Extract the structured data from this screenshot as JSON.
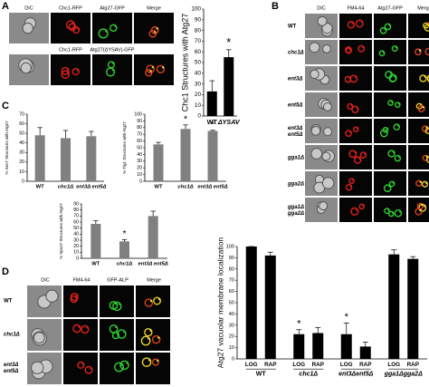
{
  "figure": {
    "panel_labels": [
      "A",
      "B",
      "C",
      "D"
    ],
    "panel_a": {
      "columns": [
        "DIC",
        "Chc1-RFP",
        "Atg27-GFP",
        "Merge"
      ],
      "row2_columns": [
        "Chc1-RFP",
        "Atg27(ΔYSAV)-GFP"
      ]
    },
    "panel_b": {
      "columns": [
        "DIC",
        "FM4-64",
        "Atg27-GFP",
        "Merge"
      ],
      "rows": [
        [
          "WT"
        ],
        [
          "chc1Δ"
        ],
        [
          "ent3Δ"
        ],
        [
          "ent5Δ"
        ],
        [
          "ent3Δ",
          "ent5Δ"
        ],
        [
          "gga1Δ"
        ],
        [
          "gga2Δ"
        ],
        [
          "gga1Δ",
          "gga2Δ"
        ]
      ]
    },
    "panel_d": {
      "columns": [
        "DIC",
        "FM4-64",
        "GFP-ALP",
        "Merge"
      ],
      "rows": [
        [
          "WT"
        ],
        [
          "chc1Δ"
        ],
        [
          "ent3Δ",
          "ent5Δ"
        ]
      ]
    }
  },
  "chart_data": [
    {
      "type": "bar",
      "y_label": "Chc1 Structures with Atg27",
      "categories": [
        "WT",
        "ΔYSAV"
      ],
      "values": [
        23,
        55
      ],
      "errors": [
        10,
        7
      ],
      "significance": [
        null,
        "*"
      ],
      "color": "#000000",
      "ylim": [
        0,
        100
      ],
      "yticks": [
        0,
        10,
        20,
        30,
        40,
        50,
        60,
        70,
        80,
        90,
        100
      ]
    },
    {
      "type": "bar",
      "y_label": "% Sec7 Structures with Atg27",
      "categories": [
        "WT",
        "chc1Δ",
        "ent3Δ ent5Δ"
      ],
      "values": [
        48,
        45,
        47
      ],
      "errors": [
        8,
        8,
        5
      ],
      "significance": [
        null,
        null,
        null
      ],
      "color": "#808080",
      "ylim": [
        0,
        70
      ],
      "yticks": [
        0,
        10,
        20,
        30,
        40,
        50,
        60,
        70
      ]
    },
    {
      "type": "bar",
      "y_label": "% Tlg1 Structures with Atg27",
      "categories": [
        "WT",
        "chc1Δ",
        "ent3Δ ent5Δ"
      ],
      "values": [
        55,
        78,
        75
      ],
      "errors": [
        3,
        6,
        1
      ],
      "significance": [
        null,
        "*",
        "*"
      ],
      "color": "#808080",
      "ylim": [
        0,
        100
      ],
      "yticks": [
        0,
        10,
        20,
        30,
        40,
        50,
        60,
        70,
        80,
        90,
        100
      ]
    },
    {
      "type": "bar",
      "y_label": "% Vps27 Structures with Atg27",
      "categories": [
        "WT",
        "chc1Δ",
        "ent3Δ ent5Δ"
      ],
      "values": [
        57,
        28,
        70
      ],
      "errors": [
        5,
        3,
        8
      ],
      "significance": [
        null,
        "*",
        null
      ],
      "color": "#808080",
      "ylim": [
        0,
        90
      ],
      "yticks": [
        0,
        10,
        20,
        30,
        40,
        50,
        60,
        70,
        80,
        90
      ]
    },
    {
      "type": "bar",
      "y_label": "Atg27 vacuolar membrane localization",
      "categories": [
        "LOG",
        "RAP",
        "LOG",
        "RAP",
        "LOG",
        "RAP",
        "LOG",
        "RAP"
      ],
      "groups": [
        "WT",
        "chc1Δ",
        "ent3Δent5Δ",
        "gga1Δgga2Δ"
      ],
      "values": [
        100,
        92,
        22,
        23,
        22,
        11,
        93,
        89
      ],
      "errors": [
        0,
        3,
        4,
        5,
        10,
        4,
        4,
        2
      ],
      "significance": [
        null,
        null,
        "*",
        null,
        "*",
        null,
        null,
        null
      ],
      "color": "#000000",
      "ylim": [
        0,
        100
      ],
      "yticks": [
        0,
        10,
        20,
        30,
        40,
        50,
        60,
        70,
        80,
        90,
        100
      ]
    }
  ]
}
